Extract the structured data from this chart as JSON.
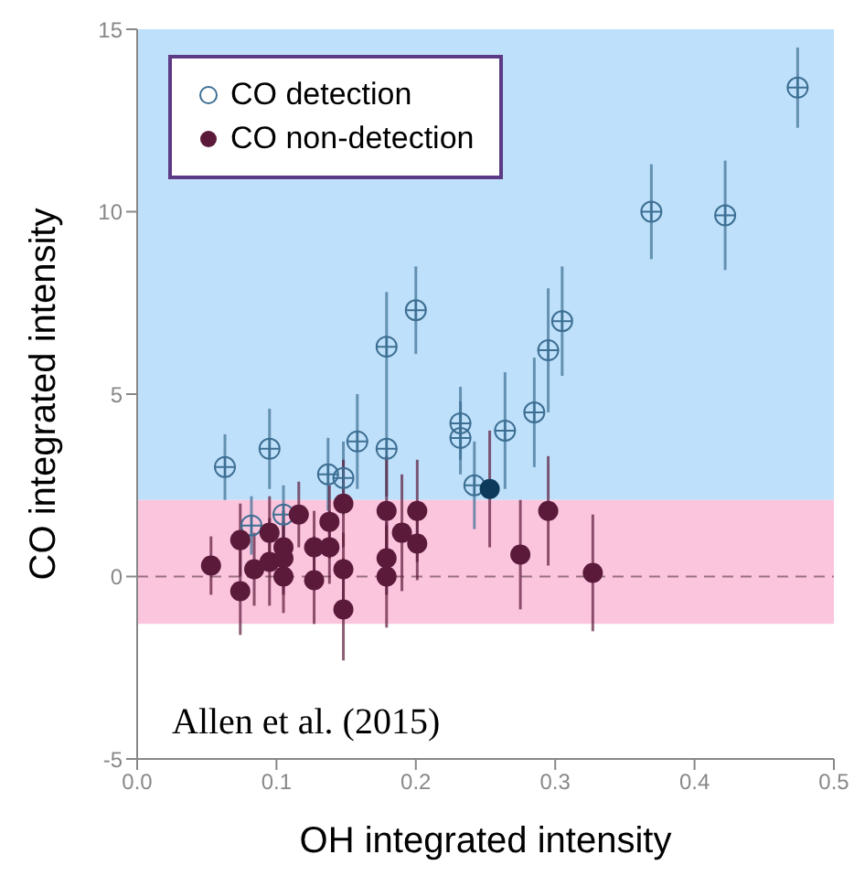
{
  "chart_data": {
    "type": "scatter",
    "xlabel": "OH integrated intensity",
    "ylabel": "CO integrated intensity",
    "xlim": [
      0,
      0.5
    ],
    "xticks": [
      {
        "value": 0,
        "label": "0.0"
      },
      {
        "value": 0.1,
        "label": "0.1"
      },
      {
        "value": 0.2,
        "label": "0.2"
      },
      {
        "value": 0.3,
        "label": "0.3"
      },
      {
        "value": 0.4,
        "label": "0.4"
      },
      {
        "value": 0.5,
        "label": "0.5"
      }
    ],
    "ylim": [
      -5,
      15
    ],
    "yticks": [
      -5,
      0,
      5,
      10,
      15
    ],
    "grid": false,
    "legend": "top left",
    "series": [
      {
        "name": "CO detection",
        "marker": "circle",
        "color": "#3d6f93",
        "x": [
          0.474,
          0.369,
          0.422,
          0.2,
          0.179,
          0.305,
          0.295,
          0.285,
          0.232,
          0.232,
          0.264,
          0.063,
          0.095,
          0.137,
          0.148,
          0.158,
          0.179,
          0.242,
          0.082,
          0.105
        ],
        "values": [
          13.4,
          10,
          9.9,
          7.3,
          6.3,
          7,
          6.2,
          4.5,
          4.2,
          3.8,
          4,
          3,
          3.5,
          2.8,
          2.7,
          3.7,
          3.5,
          2.5,
          1.4,
          1.7
        ],
        "errors": [
          1.1,
          1.3,
          1.5,
          1.2,
          1.5,
          1.5,
          1.7,
          1.5,
          1,
          1,
          1.6,
          0.9,
          1.1,
          1,
          1,
          1.3,
          1.3,
          1.2,
          0.8,
          0.8
        ]
      },
      {
        "name": "CO non-detection",
        "marker": "circle",
        "color": "#5b1a3a",
        "colors": [
          "#5b1a3a",
          "#5b1a3a",
          "#5b1a3a",
          "#5b1a3a",
          "#5b1a3a",
          "#5b1a3a",
          "#5b1a3a",
          "#5b1a3a",
          "#5b1a3a",
          "#5b1a3a",
          "#5b1a3a",
          "#5b1a3a",
          "#5b1a3a",
          "#5b1a3a",
          "#5b1a3a",
          "#5b1a3a",
          "#5b1a3a",
          "#5b1a3a",
          "#5b1a3a",
          "#5b1a3a",
          "#5b1a3a",
          "#5b1a3a",
          "#5b1a3a",
          "#0d3a5a",
          "#5b1a3a",
          "#5b1a3a",
          "#5b1a3a"
        ],
        "x": [
          0.053,
          0.074,
          0.074,
          0.084,
          0.095,
          0.095,
          0.105,
          0.105,
          0.105,
          0.116,
          0.127,
          0.127,
          0.138,
          0.138,
          0.148,
          0.148,
          0.148,
          0.179,
          0.179,
          0.179,
          0.19,
          0.201,
          0.201,
          0.253,
          0.275,
          0.295,
          0.327
        ],
        "values": [
          0.3,
          1,
          -0.4,
          0.2,
          1.2,
          0.4,
          0.8,
          0.5,
          0,
          1.7,
          0.8,
          -0.1,
          1.5,
          0.8,
          2,
          0.2,
          -0.9,
          1.8,
          0.5,
          0,
          1.2,
          1.8,
          0.9,
          2.4,
          0.6,
          1.8,
          0.1
        ],
        "errors": [
          0.8,
          1,
          1.2,
          1,
          1,
          1.2,
          1,
          1,
          1,
          0.9,
          1,
          1.2,
          1,
          1,
          1.2,
          1,
          1.4,
          1.5,
          1,
          1.4,
          1.6,
          1.4,
          1,
          1.6,
          1.5,
          1.5,
          1.6
        ]
      }
    ],
    "bands": [
      {
        "axis": "y",
        "from": 2.1,
        "to": 15,
        "color": "#bfe0fa"
      },
      {
        "axis": "y",
        "from": -1.3,
        "to": 2.1,
        "color": "#fcc5de"
      }
    ],
    "ref_lines": [
      {
        "axis": "y",
        "value": 0,
        "color": "#9a7080",
        "line_style": "dashed"
      }
    ],
    "annotations": [
      "Allen et al. (2015)"
    ]
  }
}
